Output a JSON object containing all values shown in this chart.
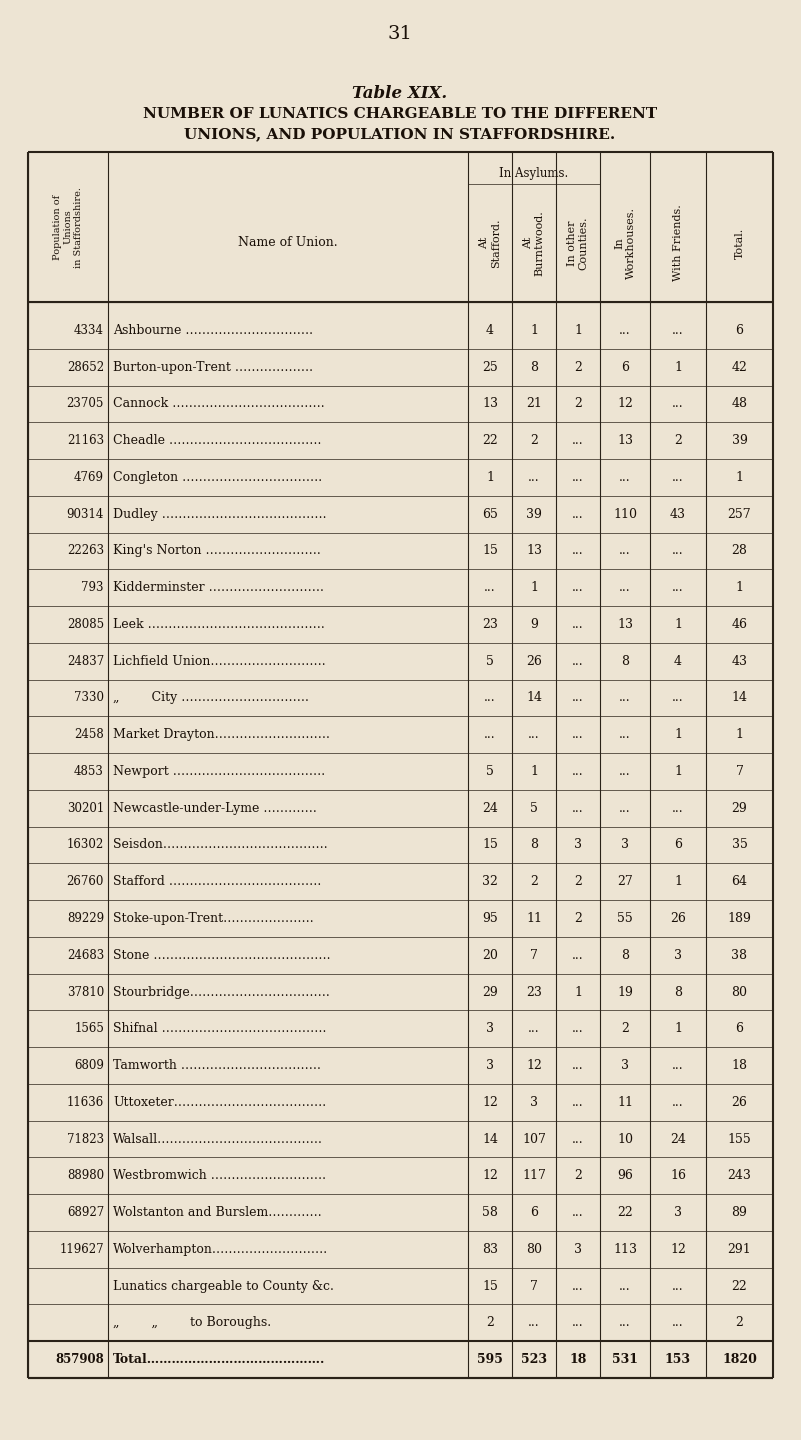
{
  "page_number": "31",
  "title_line1": "Table XIX.",
  "title_line2": "NUMBER OF LUNATICS CHARGEABLE TO THE DIFFERENT",
  "title_line3": "UNIONS, AND POPULATION IN STAFFORDSHIRE.",
  "bg_color": "#ede4d3",
  "text_color": "#1a1008",
  "rows": [
    {
      "pop": "4334",
      "name": "Ashbourne ………………………….",
      "stafford": "4",
      "burntwood": "1",
      "other": "1",
      "workhouse": "...",
      "friends": "...",
      "total": "6"
    },
    {
      "pop": "28652",
      "name": "Burton-upon-Trent ……………….",
      "stafford": "25",
      "burntwood": "8",
      "other": "2",
      "workhouse": "6",
      "friends": "1",
      "total": "42"
    },
    {
      "pop": "23705",
      "name": "Cannock ……………………………….",
      "stafford": "13",
      "burntwood": "21",
      "other": "2",
      "workhouse": "12",
      "friends": "...",
      "total": "48"
    },
    {
      "pop": "21163",
      "name": "Cheadle ……………………………….",
      "stafford": "22",
      "burntwood": "2",
      "other": "...",
      "workhouse": "13",
      "friends": "2",
      "total": "39"
    },
    {
      "pop": "4769",
      "name": "Congleton …………………………….",
      "stafford": "1",
      "burntwood": "...",
      "other": "...",
      "workhouse": "...",
      "friends": "...",
      "total": "1"
    },
    {
      "pop": "90314",
      "name": "Dudley ………………………………….",
      "stafford": "65",
      "burntwood": "39",
      "other": "...",
      "workhouse": "110",
      "friends": "43",
      "total": "257"
    },
    {
      "pop": "22263",
      "name": "King's Norton ……………………….",
      "stafford": "15",
      "burntwood": "13",
      "other": "...",
      "workhouse": "...",
      "friends": "...",
      "total": "28"
    },
    {
      "pop": "793",
      "name": "Kidderminster ……………………….",
      "stafford": "...",
      "burntwood": "1",
      "other": "...",
      "workhouse": "...",
      "friends": "...",
      "total": "1"
    },
    {
      "pop": "28085",
      "name": "Leek …………………………………….",
      "stafford": "23",
      "burntwood": "9",
      "other": "...",
      "workhouse": "13",
      "friends": "1",
      "total": "46"
    },
    {
      "pop": "24837",
      "name": "Lichfield Union……………………….",
      "stafford": "5",
      "burntwood": "26",
      "other": "...",
      "workhouse": "8",
      "friends": "4",
      "total": "43"
    },
    {
      "pop": "7330",
      "name": "„        City ………………………….",
      "stafford": "...",
      "burntwood": "14",
      "other": "...",
      "workhouse": "...",
      "friends": "...",
      "total": "14"
    },
    {
      "pop": "2458",
      "name": "Market Drayton……………………….",
      "stafford": "...",
      "burntwood": "...",
      "other": "...",
      "workhouse": "...",
      "friends": "1",
      "total": "1"
    },
    {
      "pop": "4853",
      "name": "Newport ……………………………….",
      "stafford": "5",
      "burntwood": "1",
      "other": "...",
      "workhouse": "...",
      "friends": "1",
      "total": "7"
    },
    {
      "pop": "30201",
      "name": "Newcastle-under-Lyme ………….",
      "stafford": "24",
      "burntwood": "5",
      "other": "...",
      "workhouse": "...",
      "friends": "...",
      "total": "29"
    },
    {
      "pop": "16302",
      "name": "Seisdon………………………………….",
      "stafford": "15",
      "burntwood": "8",
      "other": "3",
      "workhouse": "3",
      "friends": "6",
      "total": "35"
    },
    {
      "pop": "26760",
      "name": "Stafford ……………………………….",
      "stafford": "32",
      "burntwood": "2",
      "other": "2",
      "workhouse": "27",
      "friends": "1",
      "total": "64"
    },
    {
      "pop": "89229",
      "name": "Stoke-upon-Trent………………….",
      "stafford": "95",
      "burntwood": "11",
      "other": "2",
      "workhouse": "55",
      "friends": "26",
      "total": "189"
    },
    {
      "pop": "24683",
      "name": "Stone …………………………………….",
      "stafford": "20",
      "burntwood": "7",
      "other": "...",
      "workhouse": "8",
      "friends": "3",
      "total": "38"
    },
    {
      "pop": "37810",
      "name": "Stourbridge…………………………….",
      "stafford": "29",
      "burntwood": "23",
      "other": "1",
      "workhouse": "19",
      "friends": "8",
      "total": "80"
    },
    {
      "pop": "1565",
      "name": "Shifnal ………………………………….",
      "stafford": "3",
      "burntwood": "...",
      "other": "...",
      "workhouse": "2",
      "friends": "1",
      "total": "6"
    },
    {
      "pop": "6809",
      "name": "Tamworth …………………………….",
      "stafford": "3",
      "burntwood": "12",
      "other": "...",
      "workhouse": "3",
      "friends": "...",
      "total": "18"
    },
    {
      "pop": "11636",
      "name": "Uttoxeter……………………………….",
      "stafford": "12",
      "burntwood": "3",
      "other": "...",
      "workhouse": "11",
      "friends": "...",
      "total": "26"
    },
    {
      "pop": "71823",
      "name": "Walsall………………………………….",
      "stafford": "14",
      "burntwood": "107",
      "other": "...",
      "workhouse": "10",
      "friends": "24",
      "total": "155"
    },
    {
      "pop": "88980",
      "name": "Westbromwich ……………………….",
      "stafford": "12",
      "burntwood": "117",
      "other": "2",
      "workhouse": "96",
      "friends": "16",
      "total": "243"
    },
    {
      "pop": "68927",
      "name": "Wolstanton and Burslem………….",
      "stafford": "58",
      "burntwood": "6",
      "other": "...",
      "workhouse": "22",
      "friends": "3",
      "total": "89"
    },
    {
      "pop": "119627",
      "name": "Wolverhampton……………………….",
      "stafford": "83",
      "burntwood": "80",
      "other": "3",
      "workhouse": "113",
      "friends": "12",
      "total": "291"
    },
    {
      "pop": "",
      "name": "Lunatics chargeable to County &c.",
      "stafford": "15",
      "burntwood": "7",
      "other": "...",
      "workhouse": "...",
      "friends": "...",
      "total": "22"
    },
    {
      "pop": "",
      "name": "„        „        to Boroughs.",
      "stafford": "2",
      "burntwood": "...",
      "other": "...",
      "workhouse": "...",
      "friends": "...",
      "total": "2"
    },
    {
      "pop": "857908",
      "name": "Total…………………………………….",
      "stafford": "595",
      "burntwood": "523",
      "other": "18",
      "workhouse": "531",
      "friends": "153",
      "total": "1820"
    }
  ]
}
